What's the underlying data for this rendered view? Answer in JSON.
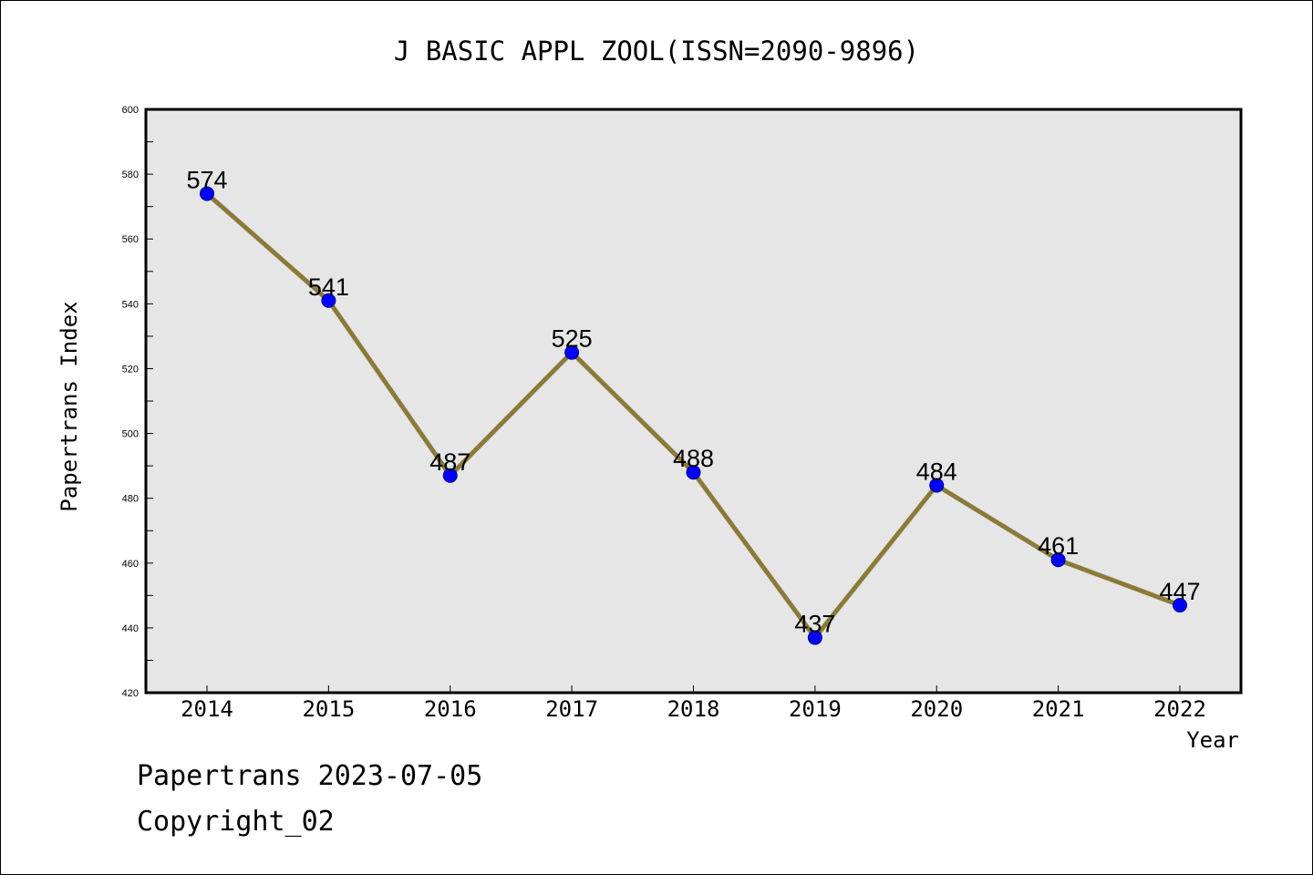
{
  "chart_data": {
    "type": "line",
    "title": "J BASIC APPL ZOOL(ISSN=2090-9896)",
    "xlabel": "Year",
    "ylabel": "Papertrans Index",
    "categories": [
      "2014",
      "2015",
      "2016",
      "2017",
      "2018",
      "2019",
      "2020",
      "2021",
      "2022"
    ],
    "values": [
      574,
      541,
      487,
      525,
      488,
      437,
      484,
      461,
      447
    ],
    "ylim": [
      420,
      600
    ],
    "yticks": [
      420,
      440,
      460,
      480,
      500,
      520,
      540,
      560,
      580,
      600
    ],
    "grid": false,
    "line_color": "#8b7a3a",
    "marker_color": "#0000ff",
    "plot_background": "#e6e6e6"
  },
  "footer": {
    "line1": "Papertrans 2023-07-05",
    "line2": "Copyright_02"
  }
}
